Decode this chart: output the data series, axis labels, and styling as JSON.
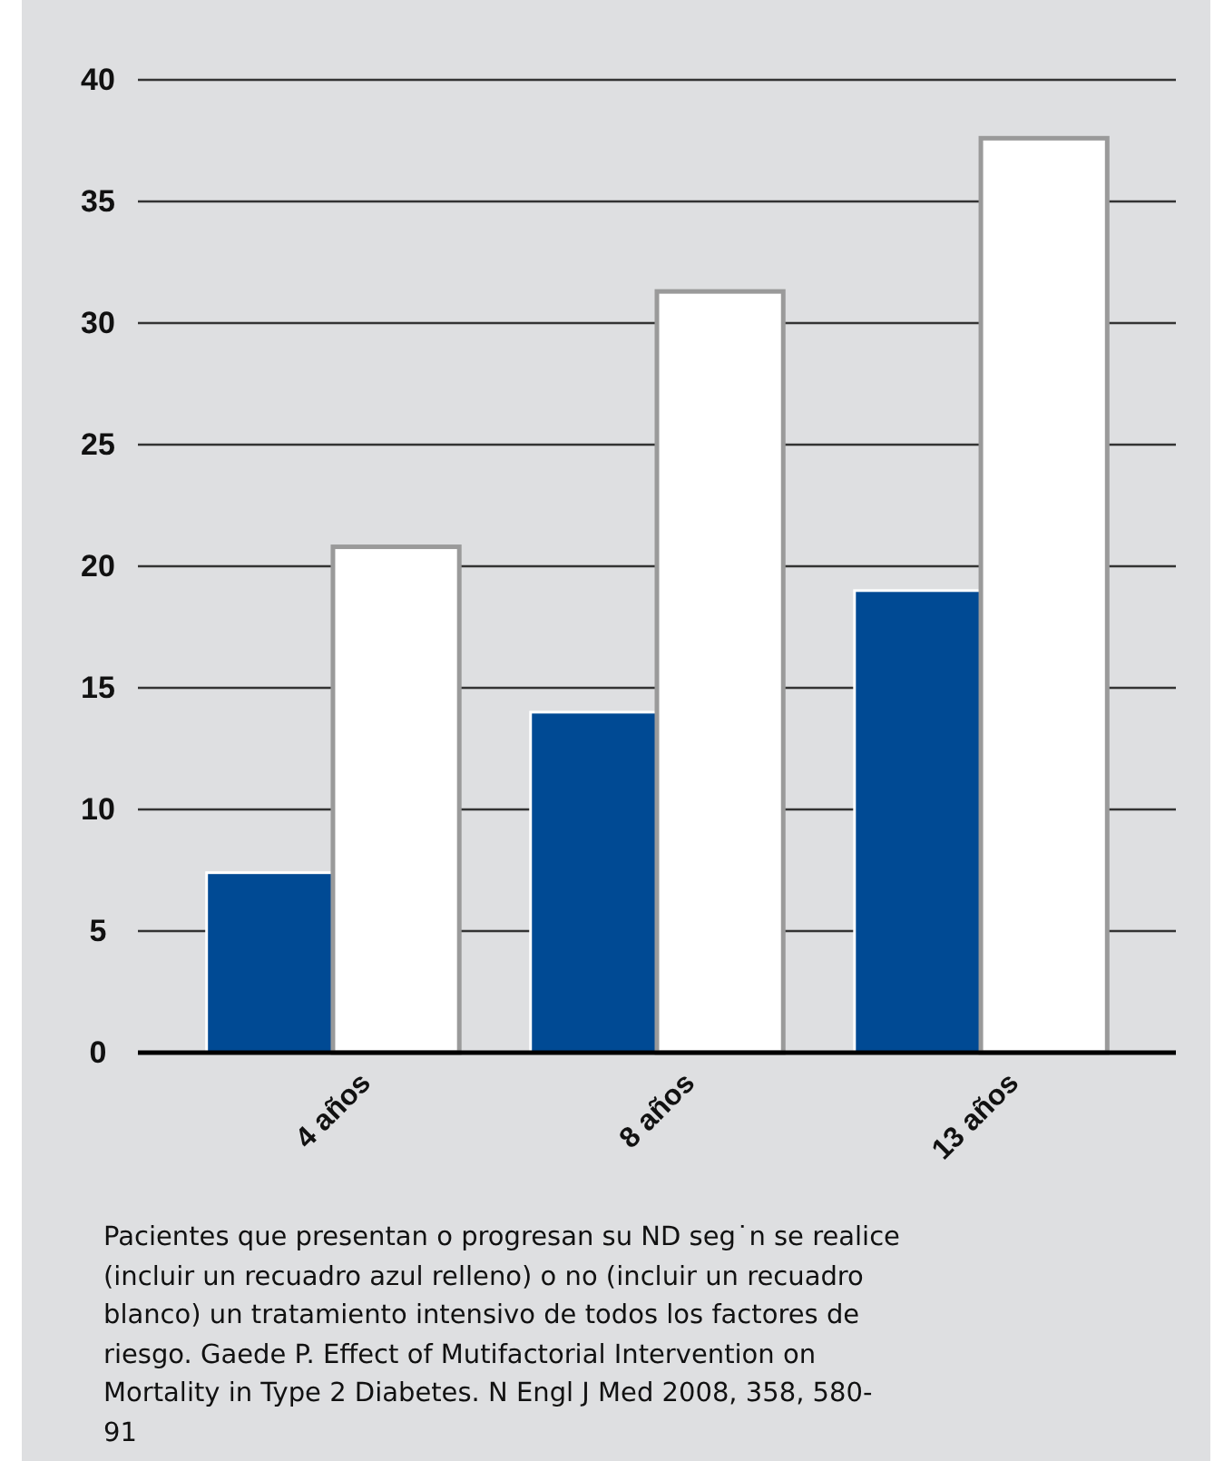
{
  "chart_data": {
    "type": "bar",
    "categories": [
      "4 años",
      "8 años",
      "13 años"
    ],
    "series": [
      {
        "color": "#004a94",
        "values": [
          7.4,
          14.0,
          19.0
        ]
      },
      {
        "color": "#ffffff",
        "values": [
          20.8,
          31.3,
          37.6
        ]
      }
    ],
    "ylim": [
      0,
      40
    ],
    "yticks": [
      0,
      5,
      10,
      15,
      20,
      25,
      30,
      35,
      40
    ],
    "grid": "y",
    "annotations": [
      "Pacientes que presentan o progresan su ND seg˙n se realice (incluir un recuadro azul relleno) o no (incluir un recuadro blanco) un tratamiento intensivo de todos los factores de riesgo. Gaede P. Effect of Mutifactorial Intervention on Mortality in Type 2 Diabetes. N Engl J Med 2008, 358, 580-91"
    ]
  }
}
